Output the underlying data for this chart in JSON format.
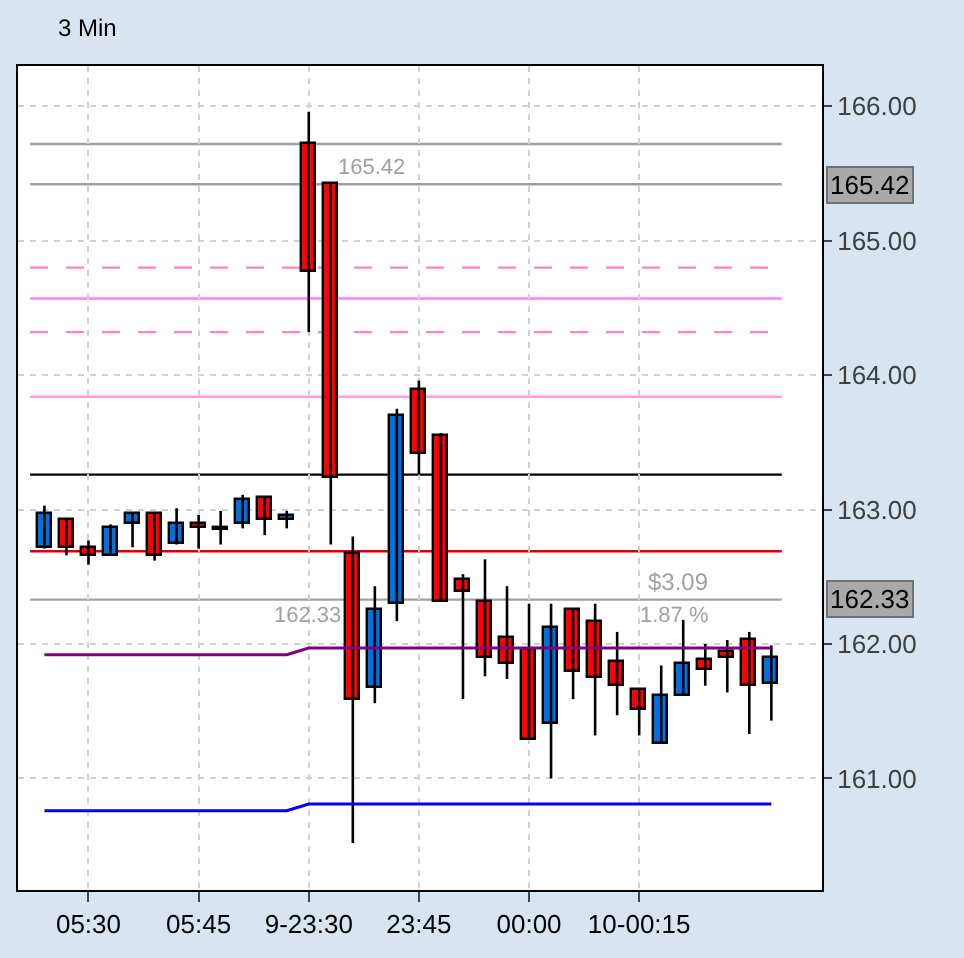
{
  "chart_data": {
    "type": "candlestick",
    "title": "3 Min",
    "categories": [
      null,
      null,
      "05:30",
      null,
      null,
      null,
      null,
      "05:45",
      null,
      null,
      null,
      null,
      "9-23:30",
      null,
      null,
      null,
      null,
      "23:45",
      null,
      null,
      null,
      null,
      "00:00",
      null,
      null,
      null,
      null,
      "10-00:15",
      null,
      null,
      null,
      null,
      null,
      null
    ],
    "ohlc": [
      [
        162.71,
        163.03,
        162.71,
        162.96
      ],
      [
        162.93,
        162.93,
        162.66,
        162.71
      ],
      [
        162.71,
        162.77,
        162.59,
        162.66
      ],
      [
        162.66,
        162.89,
        162.66,
        162.87
      ],
      [
        162.89,
        162.98,
        162.72,
        162.96
      ],
      [
        162.96,
        162.98,
        162.62,
        162.66
      ],
      [
        162.74,
        163.01,
        162.74,
        162.9
      ],
      [
        162.9,
        162.96,
        162.71,
        162.86
      ],
      [
        162.85,
        162.99,
        162.74,
        162.87
      ],
      [
        162.9,
        163.11,
        162.86,
        163.07
      ],
      [
        163.08,
        163.1,
        162.81,
        162.92
      ],
      [
        162.92,
        162.99,
        162.86,
        162.95
      ],
      [
        165.72,
        165.96,
        164.32,
        164.77
      ],
      [
        165.42,
        165.42,
        162.74,
        163.23
      ],
      [
        162.67,
        162.8,
        160.52,
        161.58
      ],
      [
        161.68,
        162.43,
        161.56,
        162.25
      ],
      [
        162.3,
        163.75,
        162.17,
        163.69
      ],
      [
        163.89,
        163.96,
        163.26,
        163.41
      ],
      [
        163.55,
        163.57,
        162.32,
        162.32
      ],
      [
        162.48,
        162.52,
        161.59,
        162.38
      ],
      [
        162.32,
        162.63,
        161.76,
        161.9
      ],
      [
        162.04,
        162.43,
        161.74,
        161.85
      ],
      [
        161.96,
        162.3,
        161.29,
        161.29
      ],
      [
        161.41,
        162.3,
        161.0,
        162.12
      ],
      [
        162.26,
        162.26,
        161.59,
        161.79
      ],
      [
        162.16,
        162.3,
        161.32,
        161.75
      ],
      [
        161.87,
        162.09,
        161.47,
        161.69
      ],
      [
        161.66,
        161.66,
        161.32,
        161.51
      ],
      [
        161.26,
        161.84,
        161.26,
        161.61
      ],
      [
        161.62,
        162.18,
        161.62,
        161.85
      ],
      [
        161.88,
        162.0,
        161.69,
        161.81
      ],
      [
        161.94,
        162.03,
        161.64,
        161.9
      ],
      [
        162.03,
        162.09,
        161.33,
        161.69
      ],
      [
        161.7,
        161.99,
        161.43,
        161.9
      ]
    ],
    "colors": [
      "#0070e0",
      "#ff0000",
      "#ff0000",
      "#0070e0",
      "#0070e0",
      "#ff0000",
      "#0070e0",
      "#ff0000",
      "#0070e0",
      "#0070e0",
      "#ff0000",
      "#0070e0",
      "#ff0000",
      "#ff0000",
      "#ff0000",
      "#0070e0",
      "#0070e0",
      "#ff0000",
      "#ff0000",
      "#ff0000",
      "#ff0000",
      "#ff0000",
      "#ff0000",
      "#0070e0",
      "#ff0000",
      "#ff0000",
      "#ff0000",
      "#ff0000",
      "#0070e0",
      "#0070e0",
      "#ff0000",
      "#ff0000",
      "#ff0000",
      "#0070e0"
    ],
    "series": [
      {
        "type": "line",
        "color": "#800080",
        "values": [
          161.92,
          161.92,
          161.92,
          161.92,
          161.92,
          161.92,
          161.92,
          161.92,
          161.92,
          161.92,
          161.92,
          161.92,
          161.97,
          161.97,
          161.97,
          161.97,
          161.97,
          161.97,
          161.97,
          161.97,
          161.97,
          161.97,
          161.97,
          161.97,
          161.97,
          161.97,
          161.97,
          161.97,
          161.97,
          161.97,
          161.97,
          161.97,
          161.97,
          161.97
        ]
      },
      {
        "type": "line",
        "color": "#0000ff",
        "values": [
          160.76,
          160.76,
          160.76,
          160.76,
          160.76,
          160.76,
          160.76,
          160.76,
          160.76,
          160.76,
          160.76,
          160.76,
          160.81,
          160.81,
          160.81,
          160.81,
          160.81,
          160.81,
          160.81,
          160.81,
          160.81,
          160.81,
          160.81,
          160.81,
          160.81,
          160.81,
          160.81,
          160.81,
          160.81,
          160.81,
          160.81,
          160.81,
          160.81,
          160.81
        ]
      }
    ],
    "ylim": [
      160.17,
      166.3
    ],
    "yticks": [
      {
        "value": 161,
        "label": "161.00"
      },
      {
        "value": 162,
        "label": "162.00"
      },
      {
        "value": 163,
        "label": "163.00"
      },
      {
        "value": 164,
        "label": "164.00"
      },
      {
        "value": 165,
        "label": "165.00"
      },
      {
        "value": 166,
        "label": "166.00"
      }
    ],
    "ref_lines": [
      {
        "axis": "y",
        "value": 165.72,
        "color": "#a0a0a0"
      },
      {
        "axis": "y",
        "value": 165.42,
        "color": "#a0a0a0",
        "label": "165.42"
      },
      {
        "axis": "y",
        "value": 164.8,
        "color": "#ff80c0",
        "line_style": "dashed"
      },
      {
        "axis": "y",
        "value": 164.57,
        "color": "#ff80ff"
      },
      {
        "axis": "y",
        "value": 164.32,
        "color": "#ff80c0",
        "line_style": "dashed"
      },
      {
        "axis": "y",
        "value": 163.84,
        "color": "#ff99ee"
      },
      {
        "axis": "y",
        "value": 163.26,
        "color": "#000000"
      },
      {
        "axis": "y",
        "value": 162.69,
        "color": "#e00000"
      },
      {
        "axis": "y",
        "value": 162.33,
        "color": "#a0a0a0",
        "label": "162.33"
      }
    ],
    "annotations": [
      {
        "text": "165.42",
        "y": 165.42
      },
      {
        "text": "162.33",
        "y": 162.33
      },
      {
        "text": "$3.09",
        "y": 162.33
      },
      {
        "text": "1.87 %",
        "y": 162.33
      }
    ],
    "grid": true
  }
}
